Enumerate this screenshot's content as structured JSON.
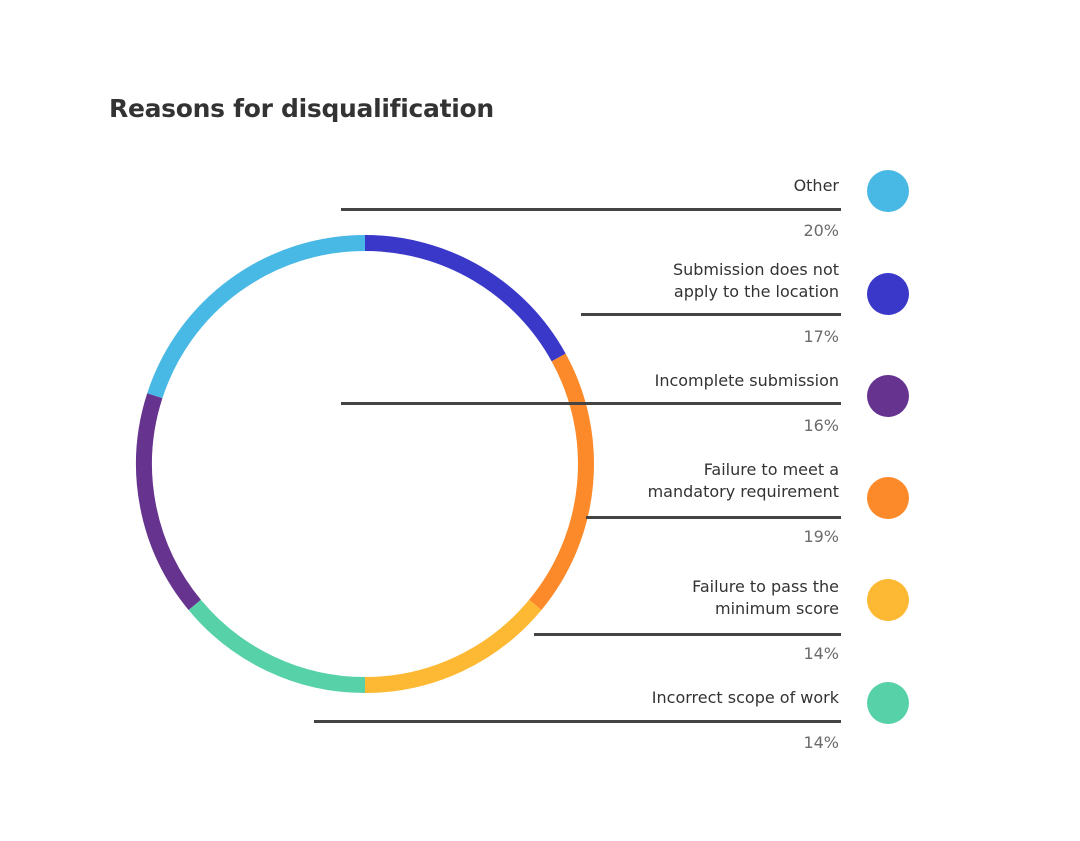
{
  "title": "Reasons for disqualification",
  "chart_data": {
    "type": "pie",
    "subtype": "donut",
    "title": "Reasons for disqualification",
    "categories": [
      "Submission does not apply to the location",
      "Failure to meet a mandatory requirement",
      "Failure to pass the minimum score",
      "Incorrect scope of work",
      "Incomplete submission",
      "Other"
    ],
    "values": [
      17,
      19,
      14,
      14,
      16,
      20
    ],
    "unit": "%",
    "colors": [
      "#3A38C8",
      "#FD8A2A",
      "#FDB933",
      "#57D1A7",
      "#66338F",
      "#48B8E4"
    ],
    "legend_position": "right",
    "start_angle": "top, clockwise"
  },
  "legend": [
    {
      "label_lines": [
        "Other"
      ],
      "pct": "20%",
      "color": "#48B8E4"
    },
    {
      "label_lines": [
        "Submission does not",
        "apply to the location"
      ],
      "pct": "17%",
      "color": "#3A38C8"
    },
    {
      "label_lines": [
        "Incomplete submission"
      ],
      "pct": "16%",
      "color": "#66338F"
    },
    {
      "label_lines": [
        "Failure to meet a",
        "mandatory requirement"
      ],
      "pct": "19%",
      "color": "#FD8A2A"
    },
    {
      "label_lines": [
        "Failure to pass the",
        "minimum score"
      ],
      "pct": "14%",
      "color": "#FDB933"
    },
    {
      "label_lines": [
        "Incorrect scope of work"
      ],
      "pct": "14%",
      "color": "#57D1A7"
    }
  ]
}
